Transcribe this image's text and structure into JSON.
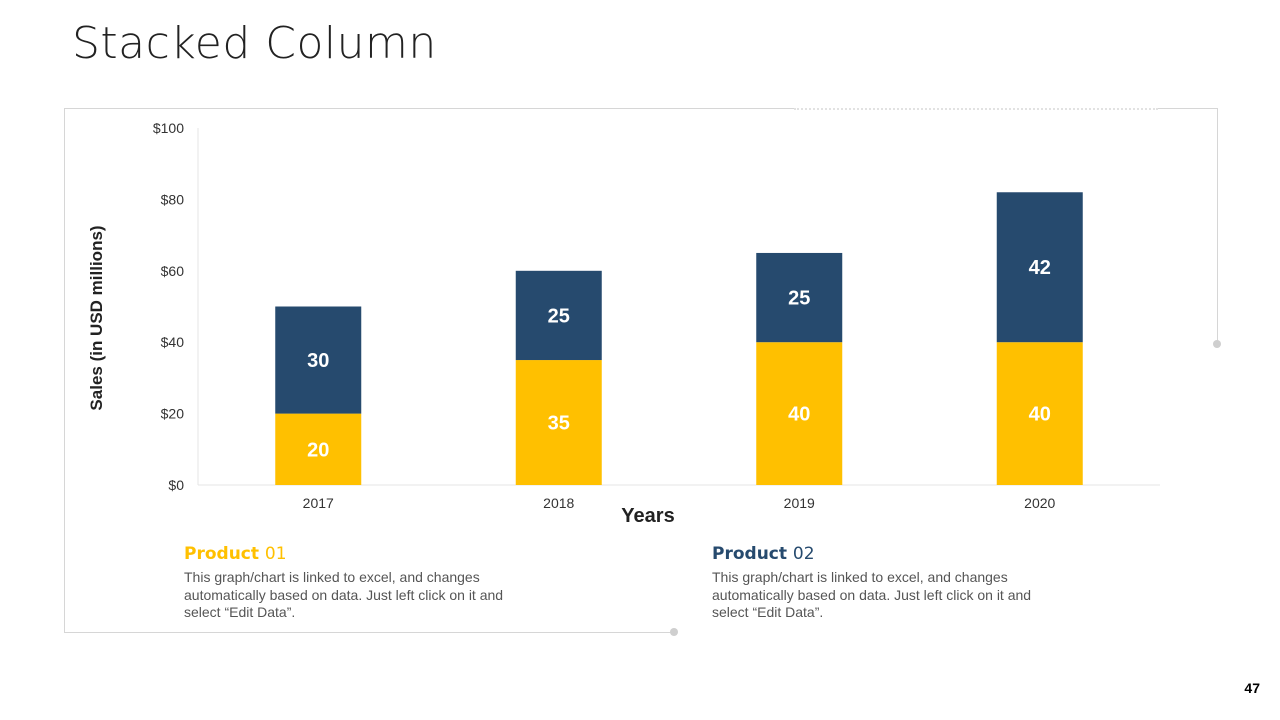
{
  "slide": {
    "title": "Stacked Column",
    "page_number": "47"
  },
  "colors": {
    "product1": "#FFC000",
    "product2": "#264A6E",
    "axis_text": "#333333"
  },
  "chart_data": {
    "type": "bar",
    "stacked": true,
    "title": "",
    "xlabel": "Years",
    "ylabel": "Sales (in USD millions)",
    "categories": [
      "2017",
      "2018",
      "2019",
      "2020"
    ],
    "series": [
      {
        "name": "Product 01",
        "color": "#FFC000",
        "values": [
          20,
          35,
          40,
          40
        ]
      },
      {
        "name": "Product 02",
        "color": "#264A6E",
        "values": [
          30,
          25,
          25,
          42
        ]
      }
    ],
    "ylim": [
      0,
      100
    ],
    "yticks": [
      0,
      20,
      40,
      60,
      80,
      100
    ],
    "ytick_labels": [
      "$0",
      "$20",
      "$40",
      "$60",
      "$80",
      "$100"
    ],
    "grid": false,
    "data_labels": true
  },
  "descriptions": [
    {
      "title": "Product",
      "number": "01",
      "text": "This graph/chart is linked to excel, and changes automatically based on data. Just left click on it and select “Edit Data”."
    },
    {
      "title": "Product",
      "number": "02",
      "text": "This graph/chart is linked to excel, and changes automatically based on data. Just left click on it and select “Edit Data”."
    }
  ]
}
